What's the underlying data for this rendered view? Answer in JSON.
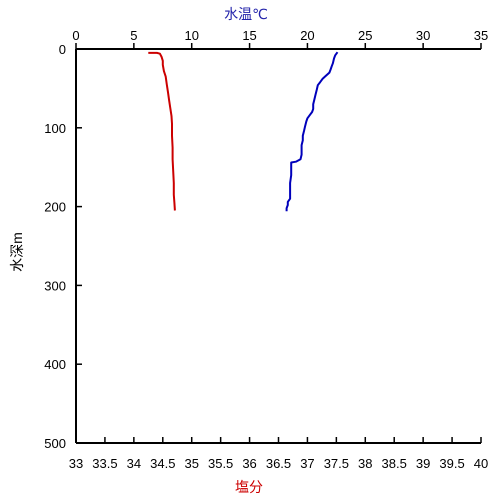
{
  "chart_data": {
    "type": "line",
    "title": "",
    "top_axis": {
      "label": "水温℃",
      "range": [
        0,
        35
      ],
      "ticks": [
        0,
        5,
        10,
        15,
        20,
        25,
        30,
        35
      ],
      "tick_labels": [
        "0",
        "5",
        "10",
        "15",
        "20",
        "25",
        "30",
        "35"
      ],
      "color": "#2222aa"
    },
    "bottom_axis": {
      "label": "塩分",
      "range": [
        33,
        40
      ],
      "ticks": [
        33,
        33.5,
        34,
        34.5,
        35,
        35.5,
        36,
        36.5,
        37,
        37.5,
        38,
        38.5,
        39,
        39.5,
        40
      ],
      "tick_labels": [
        "33",
        "33.5",
        "34",
        "34.5",
        "35",
        "35.5",
        "36",
        "36.5",
        "37",
        "37.5",
        "38",
        "38.5",
        "39",
        "39.5",
        "40"
      ],
      "color": "#cc0000"
    },
    "y_axis": {
      "label": "水深m",
      "range": [
        0,
        500
      ],
      "inverted": true,
      "ticks": [
        0,
        100,
        200,
        300,
        400,
        500
      ],
      "tick_labels": [
        "0",
        "100",
        "200",
        "300",
        "400",
        "500"
      ],
      "color": "#000000"
    },
    "grid": false,
    "legend": "none",
    "series": [
      {
        "axis": "top",
        "color": "#0000bb",
        "points": [
          [
            22.6,
            4
          ],
          [
            22.4,
            8
          ],
          [
            22.3,
            12
          ],
          [
            22.2,
            18
          ],
          [
            22.1,
            22
          ],
          [
            22.0,
            26
          ],
          [
            21.9,
            30
          ],
          [
            21.6,
            34
          ],
          [
            21.3,
            38
          ],
          [
            21.1,
            42
          ],
          [
            20.9,
            46
          ],
          [
            20.8,
            52
          ],
          [
            20.7,
            58
          ],
          [
            20.6,
            64
          ],
          [
            20.5,
            70
          ],
          [
            20.5,
            76
          ],
          [
            20.4,
            80
          ],
          [
            20.2,
            84
          ],
          [
            20.0,
            88
          ],
          [
            19.9,
            92
          ],
          [
            19.8,
            98
          ],
          [
            19.7,
            104
          ],
          [
            19.6,
            110
          ],
          [
            19.6,
            116
          ],
          [
            19.5,
            122
          ],
          [
            19.5,
            128
          ],
          [
            19.5,
            134
          ],
          [
            19.4,
            140
          ],
          [
            19.0,
            143
          ],
          [
            18.6,
            144
          ],
          [
            18.6,
            150
          ],
          [
            18.6,
            160
          ],
          [
            18.5,
            170
          ],
          [
            18.5,
            180
          ],
          [
            18.5,
            190
          ],
          [
            18.3,
            194
          ],
          [
            18.3,
            198
          ],
          [
            18.2,
            202
          ],
          [
            18.2,
            206
          ]
        ]
      },
      {
        "axis": "bottom",
        "color": "#cc0000",
        "points": [
          [
            34.25,
            5
          ],
          [
            34.4,
            5
          ],
          [
            34.45,
            6
          ],
          [
            34.48,
            10
          ],
          [
            34.5,
            15
          ],
          [
            34.5,
            20
          ],
          [
            34.52,
            28
          ],
          [
            34.55,
            35
          ],
          [
            34.57,
            45
          ],
          [
            34.59,
            55
          ],
          [
            34.61,
            65
          ],
          [
            34.63,
            75
          ],
          [
            34.65,
            85
          ],
          [
            34.66,
            95
          ],
          [
            34.66,
            110
          ],
          [
            34.67,
            125
          ],
          [
            34.67,
            140
          ],
          [
            34.68,
            155
          ],
          [
            34.69,
            170
          ],
          [
            34.69,
            185
          ],
          [
            34.7,
            195
          ],
          [
            34.71,
            205
          ]
        ]
      }
    ]
  }
}
